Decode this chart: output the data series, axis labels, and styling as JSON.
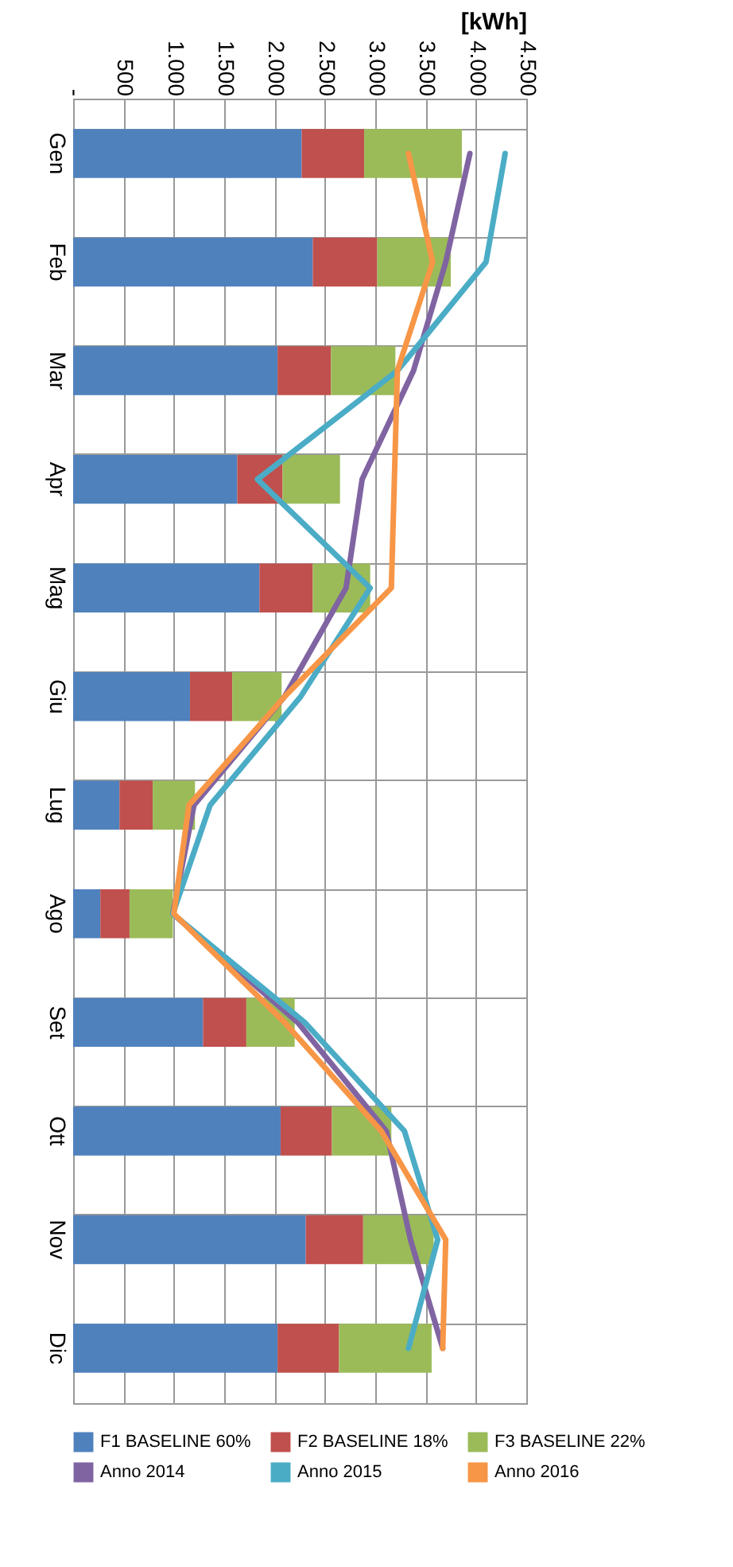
{
  "chart_data": {
    "type": "bar",
    "stacked": true,
    "orientation": "horizontal",
    "xlabel": "[kWh]",
    "categories": [
      "Gen",
      "Feb",
      "Mar",
      "Apr",
      "Mag",
      "Giu",
      "Lug",
      "Ago",
      "Set",
      "Ott",
      "Nov",
      "Dic"
    ],
    "xlim": [
      0,
      4500
    ],
    "xticks": [
      {
        "value": 0,
        "label": "-"
      },
      {
        "value": 500,
        "label": "500"
      },
      {
        "value": 1000,
        "label": "1.000"
      },
      {
        "value": 1500,
        "label": "1.500"
      },
      {
        "value": 2000,
        "label": "2.000"
      },
      {
        "value": 2500,
        "label": "2.500"
      },
      {
        "value": 3000,
        "label": "3.000"
      },
      {
        "value": 3500,
        "label": "3.500"
      },
      {
        "value": 4000,
        "label": "4.000"
      },
      {
        "value": 4500,
        "label": "4.500"
      }
    ],
    "grid": true,
    "legend": "bottom",
    "marker": "none",
    "line_style": "solid",
    "series": [
      {
        "name": "F1 BASELINE 60%",
        "color": "#4f81bd",
        "type": "bar",
        "values": [
          2270,
          2380,
          2030,
          1630,
          1850,
          1160,
          460,
          270,
          1290,
          2060,
          2310,
          2030
        ]
      },
      {
        "name": "F2 BASELINE 18%",
        "color": "#c0504d",
        "type": "bar",
        "values": [
          620,
          640,
          530,
          450,
          530,
          420,
          330,
          290,
          430,
          510,
          570,
          610
        ]
      },
      {
        "name": "F3 BASELINE 22%",
        "color": "#9bbb59",
        "type": "bar",
        "values": [
          970,
          730,
          640,
          570,
          570,
          490,
          420,
          430,
          480,
          590,
          700,
          920
        ]
      },
      {
        "name": "Anno 2014",
        "color": "#8064a2",
        "type": "line",
        "values": [
          3940,
          3700,
          3380,
          2870,
          2710,
          2100,
          1200,
          990,
          2230,
          3110,
          3350,
          3670
        ]
      },
      {
        "name": "Anno 2015",
        "color": "#4bacc6",
        "type": "line",
        "values": [
          4290,
          4100,
          3220,
          1830,
          2950,
          2260,
          1360,
          990,
          2300,
          3290,
          3620,
          3330
        ]
      },
      {
        "name": "Anno 2016",
        "color": "#f79646",
        "type": "line",
        "values": [
          3330,
          3570,
          3220,
          3190,
          3160,
          2100,
          1150,
          1000,
          2100,
          3060,
          3700,
          3670
        ]
      }
    ]
  }
}
